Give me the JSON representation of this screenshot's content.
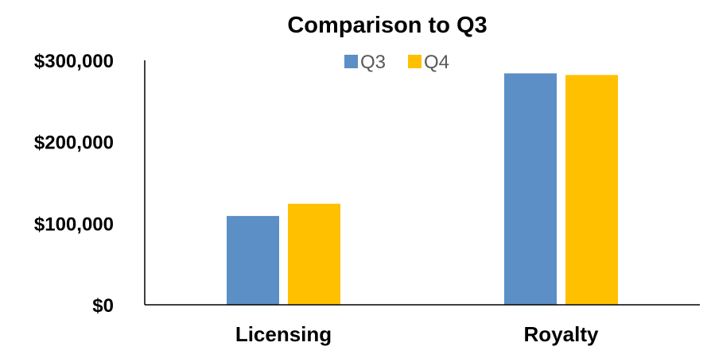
{
  "chart_data": {
    "type": "bar",
    "title": "Comparison to Q3",
    "xlabel": "",
    "ylabel": "",
    "categories": [
      "Licensing",
      "Royalty"
    ],
    "series": [
      {
        "name": "Q3",
        "color": "#5B8FC6",
        "values": [
          109000,
          284000
        ]
      },
      {
        "name": "Q4",
        "color": "#FFC000",
        "values": [
          124000,
          282000
        ]
      }
    ],
    "ylim": [
      0,
      300000
    ],
    "yticks": [
      {
        "value": 0,
        "label": "$0"
      },
      {
        "value": 100000,
        "label": "$100,000"
      },
      {
        "value": 200000,
        "label": "$200,000"
      },
      {
        "value": 300000,
        "label": "$300,000"
      }
    ],
    "grid": false,
    "legend_position": "top-center"
  }
}
